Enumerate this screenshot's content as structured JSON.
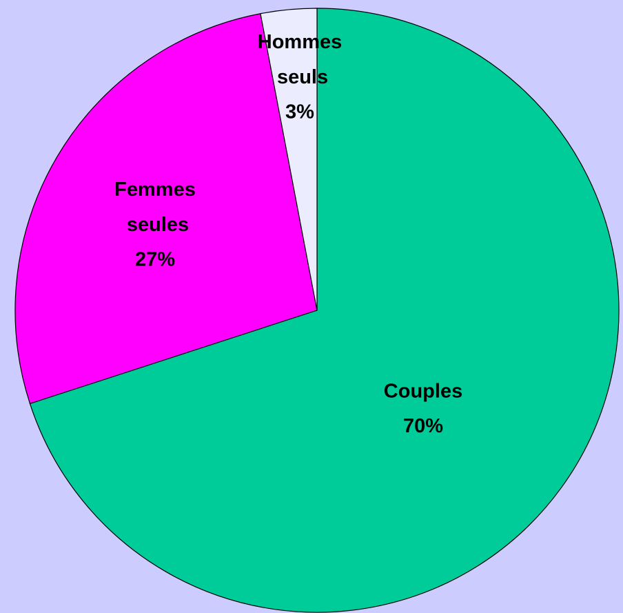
{
  "chart_data": {
    "type": "pie",
    "categories": [
      "Couples",
      "Femmes seules",
      "Hommes seuls"
    ],
    "values": [
      70,
      27,
      3
    ],
    "value_labels": [
      "70%",
      "27%",
      "3%"
    ],
    "colors": [
      "#00cc99",
      "#ff00ff",
      "#ececff"
    ]
  }
}
